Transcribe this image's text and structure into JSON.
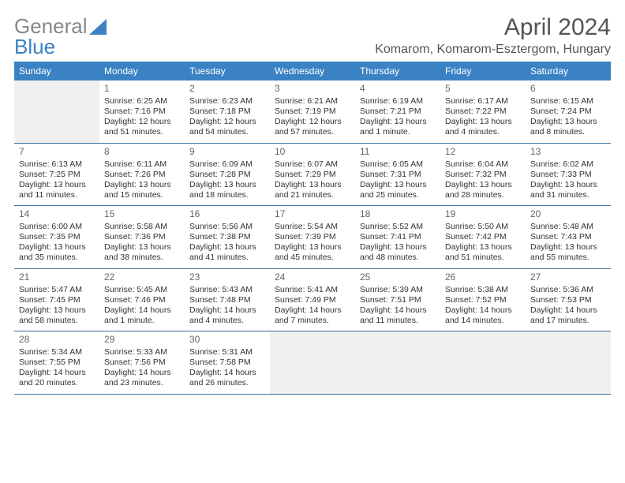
{
  "logo": {
    "part1": "General",
    "part2": "Blue"
  },
  "title": "April 2024",
  "location": "Komarom, Komarom-Esztergom, Hungary",
  "days_of_week": [
    "Sunday",
    "Monday",
    "Tuesday",
    "Wednesday",
    "Thursday",
    "Friday",
    "Saturday"
  ],
  "calendar": {
    "type": "table",
    "header_bg": "#3b82c4",
    "header_fg": "#ffffff",
    "border_color": "#3b6fa0",
    "empty_bg": "#f0f0f0",
    "cell_fontsize": 10.5,
    "daynum_color": "#666666"
  },
  "weeks": [
    [
      {
        "empty": true
      },
      {
        "n": "1",
        "sr": "Sunrise: 6:25 AM",
        "ss": "Sunset: 7:16 PM",
        "d1": "Daylight: 12 hours",
        "d2": "and 51 minutes."
      },
      {
        "n": "2",
        "sr": "Sunrise: 6:23 AM",
        "ss": "Sunset: 7:18 PM",
        "d1": "Daylight: 12 hours",
        "d2": "and 54 minutes."
      },
      {
        "n": "3",
        "sr": "Sunrise: 6:21 AM",
        "ss": "Sunset: 7:19 PM",
        "d1": "Daylight: 12 hours",
        "d2": "and 57 minutes."
      },
      {
        "n": "4",
        "sr": "Sunrise: 6:19 AM",
        "ss": "Sunset: 7:21 PM",
        "d1": "Daylight: 13 hours",
        "d2": "and 1 minute."
      },
      {
        "n": "5",
        "sr": "Sunrise: 6:17 AM",
        "ss": "Sunset: 7:22 PM",
        "d1": "Daylight: 13 hours",
        "d2": "and 4 minutes."
      },
      {
        "n": "6",
        "sr": "Sunrise: 6:15 AM",
        "ss": "Sunset: 7:24 PM",
        "d1": "Daylight: 13 hours",
        "d2": "and 8 minutes."
      }
    ],
    [
      {
        "n": "7",
        "sr": "Sunrise: 6:13 AM",
        "ss": "Sunset: 7:25 PM",
        "d1": "Daylight: 13 hours",
        "d2": "and 11 minutes."
      },
      {
        "n": "8",
        "sr": "Sunrise: 6:11 AM",
        "ss": "Sunset: 7:26 PM",
        "d1": "Daylight: 13 hours",
        "d2": "and 15 minutes."
      },
      {
        "n": "9",
        "sr": "Sunrise: 6:09 AM",
        "ss": "Sunset: 7:28 PM",
        "d1": "Daylight: 13 hours",
        "d2": "and 18 minutes."
      },
      {
        "n": "10",
        "sr": "Sunrise: 6:07 AM",
        "ss": "Sunset: 7:29 PM",
        "d1": "Daylight: 13 hours",
        "d2": "and 21 minutes."
      },
      {
        "n": "11",
        "sr": "Sunrise: 6:05 AM",
        "ss": "Sunset: 7:31 PM",
        "d1": "Daylight: 13 hours",
        "d2": "and 25 minutes."
      },
      {
        "n": "12",
        "sr": "Sunrise: 6:04 AM",
        "ss": "Sunset: 7:32 PM",
        "d1": "Daylight: 13 hours",
        "d2": "and 28 minutes."
      },
      {
        "n": "13",
        "sr": "Sunrise: 6:02 AM",
        "ss": "Sunset: 7:33 PM",
        "d1": "Daylight: 13 hours",
        "d2": "and 31 minutes."
      }
    ],
    [
      {
        "n": "14",
        "sr": "Sunrise: 6:00 AM",
        "ss": "Sunset: 7:35 PM",
        "d1": "Daylight: 13 hours",
        "d2": "and 35 minutes."
      },
      {
        "n": "15",
        "sr": "Sunrise: 5:58 AM",
        "ss": "Sunset: 7:36 PM",
        "d1": "Daylight: 13 hours",
        "d2": "and 38 minutes."
      },
      {
        "n": "16",
        "sr": "Sunrise: 5:56 AM",
        "ss": "Sunset: 7:38 PM",
        "d1": "Daylight: 13 hours",
        "d2": "and 41 minutes."
      },
      {
        "n": "17",
        "sr": "Sunrise: 5:54 AM",
        "ss": "Sunset: 7:39 PM",
        "d1": "Daylight: 13 hours",
        "d2": "and 45 minutes."
      },
      {
        "n": "18",
        "sr": "Sunrise: 5:52 AM",
        "ss": "Sunset: 7:41 PM",
        "d1": "Daylight: 13 hours",
        "d2": "and 48 minutes."
      },
      {
        "n": "19",
        "sr": "Sunrise: 5:50 AM",
        "ss": "Sunset: 7:42 PM",
        "d1": "Daylight: 13 hours",
        "d2": "and 51 minutes."
      },
      {
        "n": "20",
        "sr": "Sunrise: 5:48 AM",
        "ss": "Sunset: 7:43 PM",
        "d1": "Daylight: 13 hours",
        "d2": "and 55 minutes."
      }
    ],
    [
      {
        "n": "21",
        "sr": "Sunrise: 5:47 AM",
        "ss": "Sunset: 7:45 PM",
        "d1": "Daylight: 13 hours",
        "d2": "and 58 minutes."
      },
      {
        "n": "22",
        "sr": "Sunrise: 5:45 AM",
        "ss": "Sunset: 7:46 PM",
        "d1": "Daylight: 14 hours",
        "d2": "and 1 minute."
      },
      {
        "n": "23",
        "sr": "Sunrise: 5:43 AM",
        "ss": "Sunset: 7:48 PM",
        "d1": "Daylight: 14 hours",
        "d2": "and 4 minutes."
      },
      {
        "n": "24",
        "sr": "Sunrise: 5:41 AM",
        "ss": "Sunset: 7:49 PM",
        "d1": "Daylight: 14 hours",
        "d2": "and 7 minutes."
      },
      {
        "n": "25",
        "sr": "Sunrise: 5:39 AM",
        "ss": "Sunset: 7:51 PM",
        "d1": "Daylight: 14 hours",
        "d2": "and 11 minutes."
      },
      {
        "n": "26",
        "sr": "Sunrise: 5:38 AM",
        "ss": "Sunset: 7:52 PM",
        "d1": "Daylight: 14 hours",
        "d2": "and 14 minutes."
      },
      {
        "n": "27",
        "sr": "Sunrise: 5:36 AM",
        "ss": "Sunset: 7:53 PM",
        "d1": "Daylight: 14 hours",
        "d2": "and 17 minutes."
      }
    ],
    [
      {
        "n": "28",
        "sr": "Sunrise: 5:34 AM",
        "ss": "Sunset: 7:55 PM",
        "d1": "Daylight: 14 hours",
        "d2": "and 20 minutes."
      },
      {
        "n": "29",
        "sr": "Sunrise: 5:33 AM",
        "ss": "Sunset: 7:56 PM",
        "d1": "Daylight: 14 hours",
        "d2": "and 23 minutes."
      },
      {
        "n": "30",
        "sr": "Sunrise: 5:31 AM",
        "ss": "Sunset: 7:58 PM",
        "d1": "Daylight: 14 hours",
        "d2": "and 26 minutes."
      },
      {
        "empty": true
      },
      {
        "empty": true
      },
      {
        "empty": true
      },
      {
        "empty": true
      }
    ]
  ]
}
